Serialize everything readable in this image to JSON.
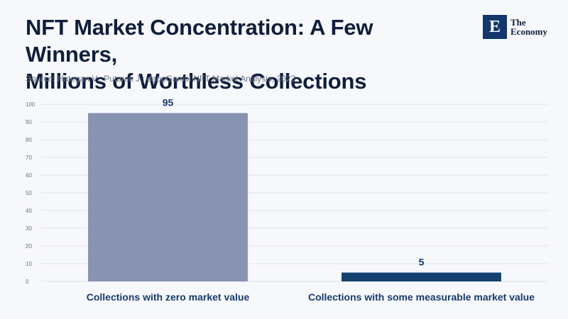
{
  "header": {
    "title_line1": "NFT Market Concentration: A Few Winners,",
    "title_line2": "Millions of Worthless Collections",
    "source": "Source: Hategan V.; Putarek J.; dappGambl NFT Market Analysis; 2023"
  },
  "logo": {
    "glyph": "E",
    "line1": "The",
    "line2": "Economy",
    "color": "#14386b"
  },
  "chart_data": {
    "type": "bar",
    "categories": [
      "Collections with zero market value",
      "Collections with some measurable market value"
    ],
    "values": [
      95,
      5
    ],
    "data_labels": [
      "95",
      "5"
    ],
    "colors": [
      "#8793b1",
      "#13406f"
    ],
    "ylim": [
      0,
      100
    ],
    "yticks": [
      0,
      10,
      20,
      30,
      40,
      50,
      60,
      70,
      80,
      90,
      100
    ],
    "grid": true,
    "title": "",
    "xlabel": "",
    "ylabel": ""
  }
}
